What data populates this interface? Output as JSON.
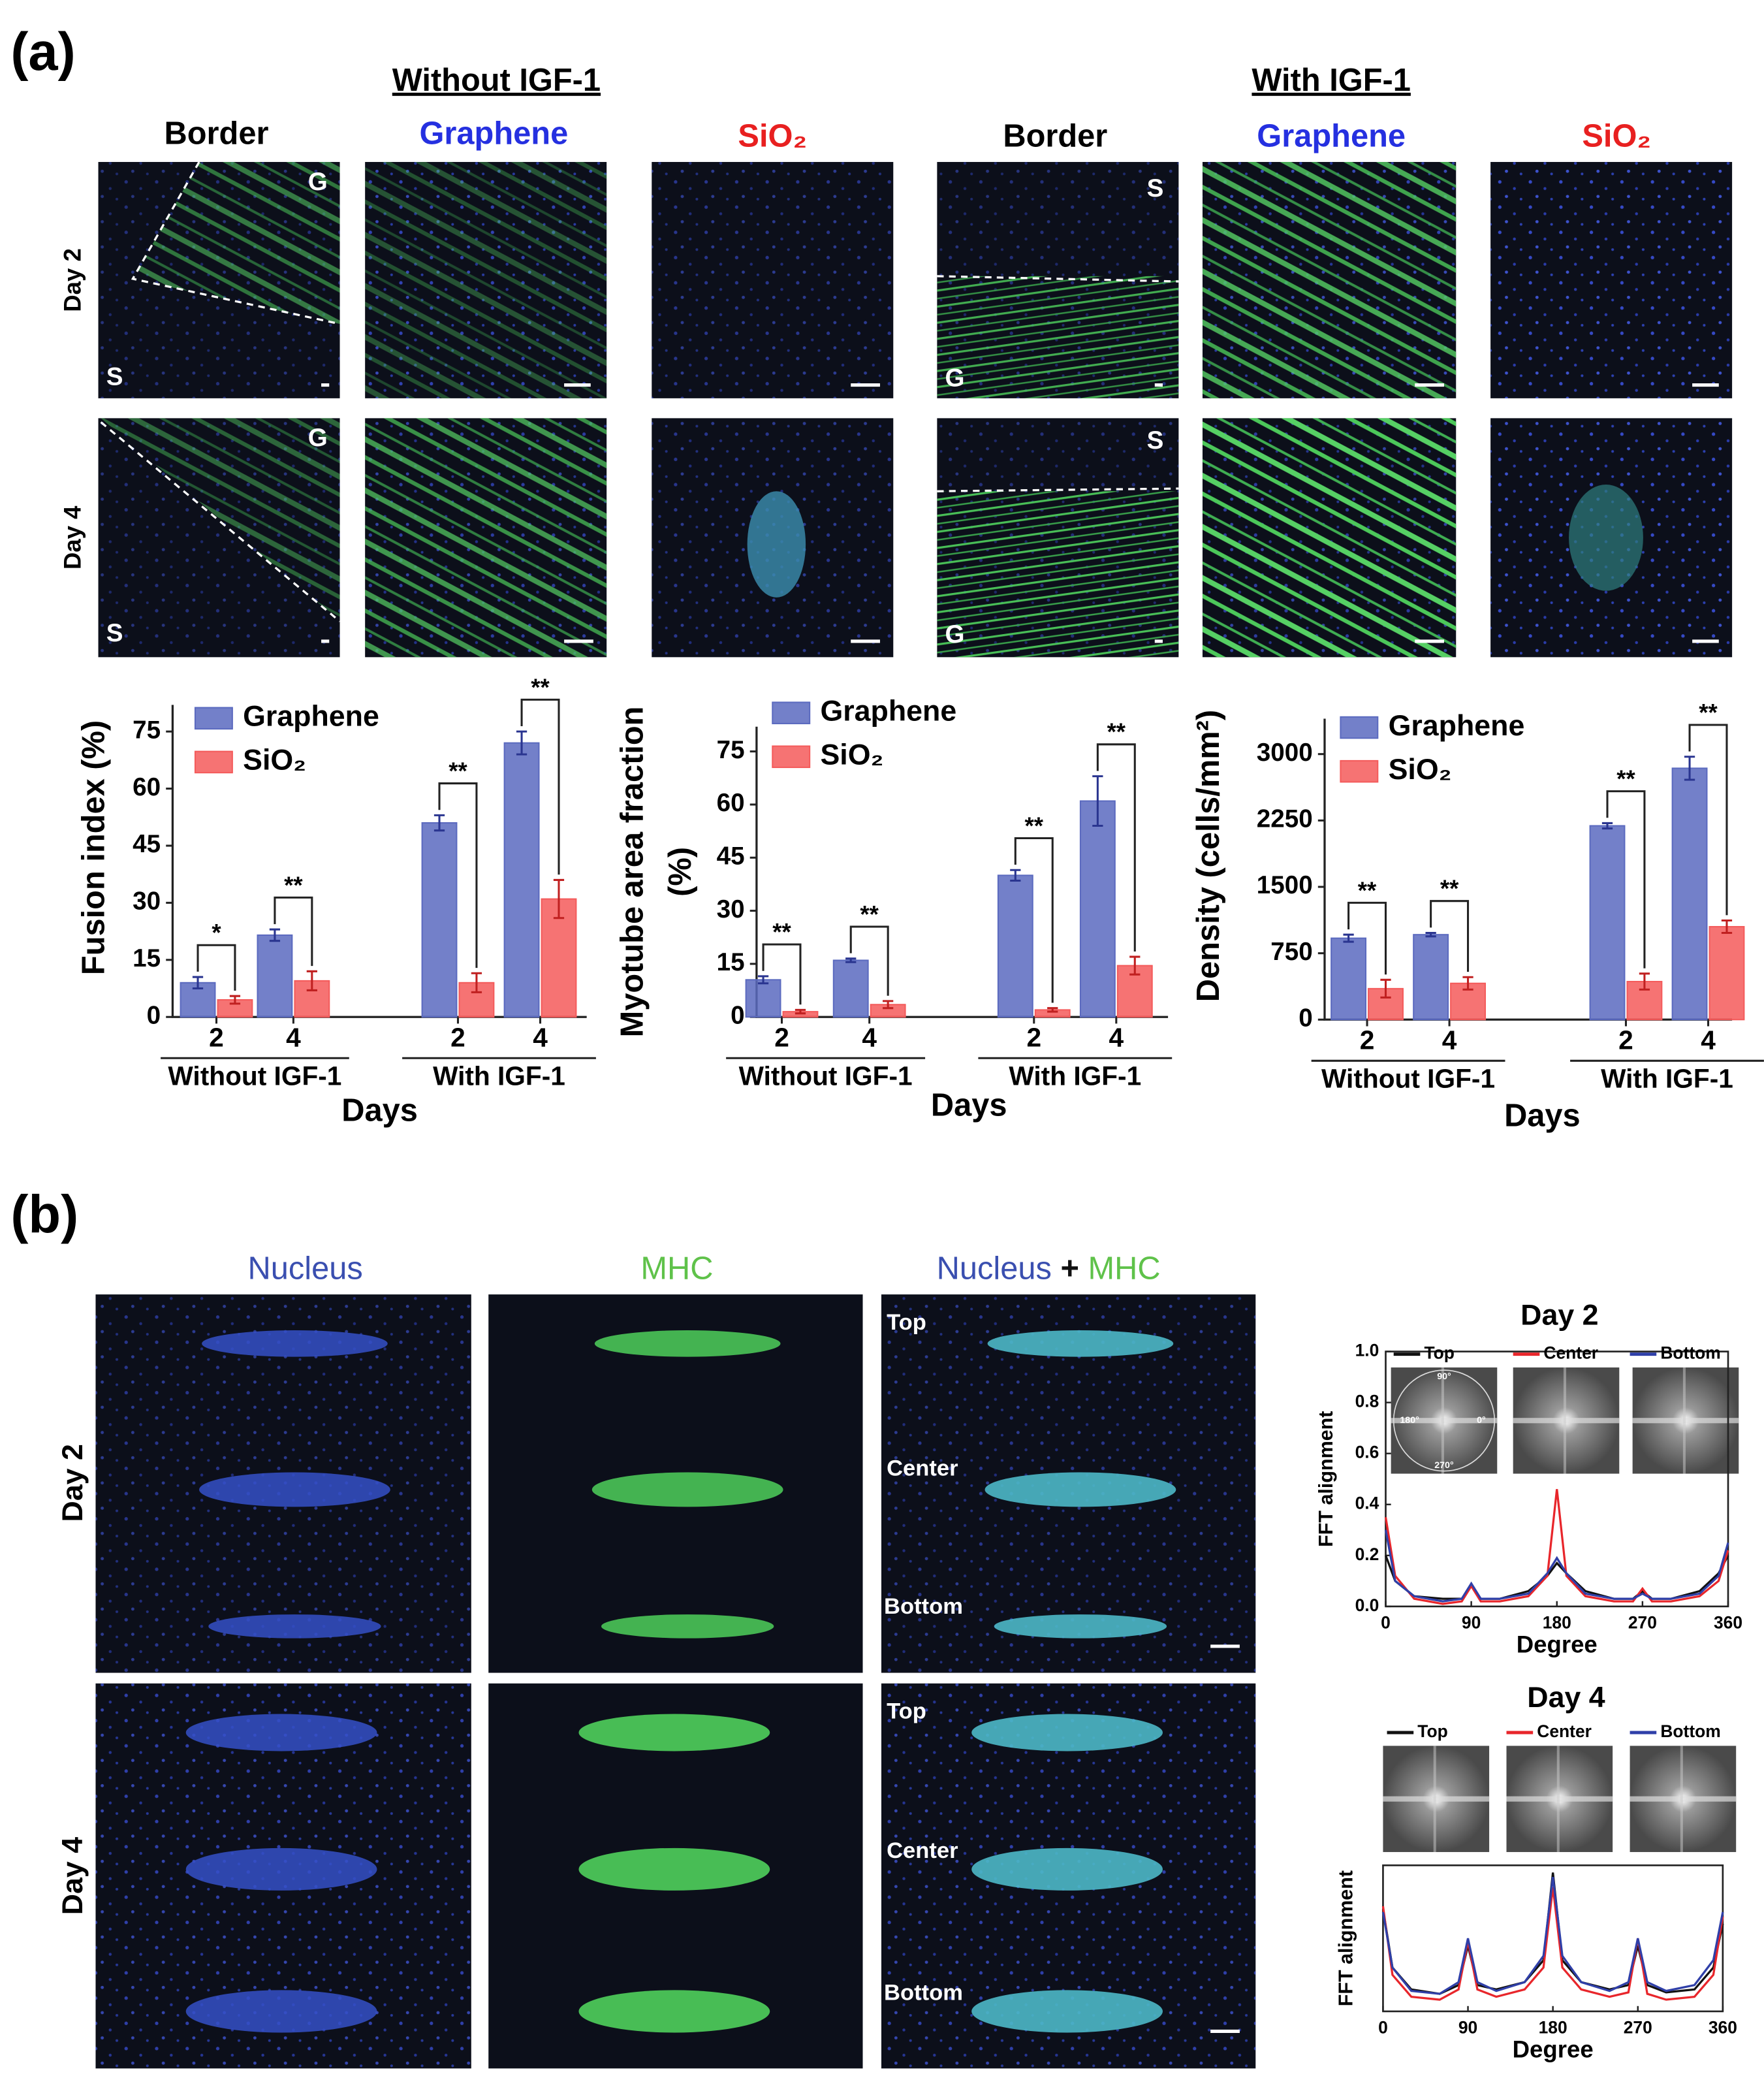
{
  "panel_a": {
    "label": "(a)",
    "groups": [
      "Without IGF-1",
      "With IGF-1"
    ],
    "columns": [
      "Border",
      "Graphene",
      "SiO₂",
      "Border",
      "Graphene",
      "SiO₂"
    ],
    "rows": [
      "Day 2",
      "Day 4"
    ],
    "border_labels": [
      [
        "G",
        "S"
      ],
      [
        "G",
        "S"
      ],
      [
        "S",
        "G"
      ],
      [
        "S",
        "G"
      ]
    ]
  },
  "panel_b": {
    "label": "(b)",
    "columns": [
      "Nucleus",
      "MHC"
    ],
    "merged_column": [
      "Nucleus",
      "+",
      "MHC"
    ],
    "rows": [
      "Day 2",
      "Day 4"
    ],
    "positions": [
      "Top",
      "Center",
      "Bottom"
    ],
    "fft_angles": [
      "90°",
      "180°",
      "0°",
      "270°"
    ]
  },
  "chart_data": [
    {
      "type": "bar",
      "y_label": "Fusion index (%)",
      "x_label": "Days",
      "categories": [
        "2",
        "4",
        "2",
        "4"
      ],
      "groups": [
        "Without IGF-1",
        "With IGF-1"
      ],
      "series": [
        {
          "name": "Graphene",
          "color": "#5b6abf",
          "values": [
            9,
            21.5,
            51,
            72
          ],
          "errors": [
            1.5,
            1.5,
            2,
            3
          ]
        },
        {
          "name": "SiO₂",
          "color": "#f45b5b",
          "values": [
            4.5,
            9.5,
            9,
            31
          ],
          "errors": [
            1,
            2.5,
            2.5,
            5
          ]
        }
      ],
      "significance": [
        "*",
        "**",
        "**",
        "**"
      ],
      "ylim": [
        0,
        82
      ],
      "yticks": [
        0,
        15,
        30,
        45,
        60,
        75
      ]
    },
    {
      "type": "bar",
      "y_label": [
        "Myotube area fraction",
        "(%)"
      ],
      "x_label": "Days",
      "categories": [
        "2",
        "4",
        "2",
        "4"
      ],
      "groups": [
        "Without IGF-1",
        "With IGF-1"
      ],
      "series": [
        {
          "name": "Graphene",
          "color": "#5b6abf",
          "values": [
            10.5,
            16,
            40,
            61
          ],
          "errors": [
            1,
            0.5,
            1.5,
            7
          ]
        },
        {
          "name": "SiO₂",
          "color": "#f45b5b",
          "values": [
            1.5,
            3.5,
            2,
            14.5
          ],
          "errors": [
            0.5,
            1,
            0.5,
            2.5
          ]
        }
      ],
      "significance": [
        "**",
        "**",
        "**",
        "**"
      ],
      "ylim": [
        0,
        82
      ],
      "yticks": [
        0,
        15,
        30,
        45,
        60,
        75
      ]
    },
    {
      "type": "bar",
      "y_label": "Density (cells/mm²)",
      "x_label": "Days",
      "categories": [
        "2",
        "4",
        "2",
        "4"
      ],
      "groups": [
        "Without IGF-1",
        "With IGF-1"
      ],
      "series": [
        {
          "name": "Graphene",
          "color": "#5b6abf",
          "values": [
            920,
            960,
            2190,
            2840
          ],
          "errors": [
            40,
            20,
            30,
            130
          ]
        },
        {
          "name": "SiO₂",
          "color": "#f45b5b",
          "values": [
            350,
            410,
            430,
            1050
          ],
          "errors": [
            100,
            70,
            90,
            70
          ]
        }
      ],
      "significance": [
        "**",
        "**",
        "**",
        "**"
      ],
      "ylim": [
        0,
        3400
      ],
      "yticks": [
        0,
        750,
        1500,
        2250,
        3000
      ]
    },
    {
      "type": "line",
      "title": "Day 2",
      "x_label": "Degree",
      "y_label": "FFT alignment",
      "x": [
        0,
        10,
        30,
        60,
        80,
        90,
        100,
        120,
        150,
        170,
        180,
        190,
        210,
        240,
        260,
        270,
        280,
        300,
        330,
        350,
        360
      ],
      "series": [
        {
          "name": "Top",
          "color": "#111111",
          "values": [
            0.2,
            0.1,
            0.04,
            0.03,
            0.03,
            0.08,
            0.03,
            0.03,
            0.06,
            0.12,
            0.17,
            0.13,
            0.06,
            0.03,
            0.03,
            0.06,
            0.03,
            0.03,
            0.06,
            0.13,
            0.2
          ]
        },
        {
          "name": "Center",
          "color": "#e8262b",
          "values": [
            0.35,
            0.12,
            0.03,
            0.01,
            0.02,
            0.08,
            0.02,
            0.02,
            0.04,
            0.12,
            0.46,
            0.12,
            0.04,
            0.02,
            0.02,
            0.07,
            0.02,
            0.02,
            0.04,
            0.1,
            0.22
          ]
        },
        {
          "name": "Bottom",
          "color": "#2f3fa8",
          "values": [
            0.3,
            0.1,
            0.04,
            0.02,
            0.03,
            0.09,
            0.03,
            0.03,
            0.05,
            0.13,
            0.19,
            0.13,
            0.05,
            0.03,
            0.03,
            0.05,
            0.03,
            0.03,
            0.05,
            0.12,
            0.25
          ]
        }
      ],
      "xlim": [
        0,
        360
      ],
      "xticks": [
        0,
        90,
        180,
        270,
        360
      ],
      "ylim": [
        0,
        1
      ],
      "yticks": [
        {
          "value": 0,
          "label": "0.0"
        },
        {
          "value": 0.2,
          "label": "0.2"
        },
        {
          "value": 0.4,
          "label": "0.4"
        },
        {
          "value": 0.6,
          "label": "0.6"
        },
        {
          "value": 0.8,
          "label": "0.8"
        },
        {
          "value": 1,
          "label": "1.0"
        }
      ]
    },
    {
      "type": "line",
      "title": "Day 4",
      "x_label": "Degree",
      "y_label": "FFT alignment",
      "x": [
        0,
        10,
        30,
        60,
        80,
        90,
        100,
        120,
        150,
        170,
        180,
        190,
        210,
        240,
        260,
        270,
        280,
        300,
        330,
        350,
        360
      ],
      "series": [
        {
          "name": "Top",
          "color": "#111111",
          "values": [
            0.7,
            0.3,
            0.15,
            0.12,
            0.18,
            0.45,
            0.18,
            0.15,
            0.2,
            0.35,
            0.95,
            0.35,
            0.2,
            0.15,
            0.18,
            0.45,
            0.18,
            0.13,
            0.15,
            0.3,
            0.6
          ]
        },
        {
          "name": "Center",
          "color": "#e8262b",
          "values": [
            0.72,
            0.25,
            0.1,
            0.08,
            0.15,
            0.48,
            0.15,
            0.1,
            0.15,
            0.3,
            0.85,
            0.3,
            0.15,
            0.1,
            0.13,
            0.5,
            0.12,
            0.08,
            0.1,
            0.25,
            0.65
          ]
        },
        {
          "name": "Bottom",
          "color": "#2f3fa8",
          "values": [
            0.68,
            0.3,
            0.14,
            0.12,
            0.2,
            0.5,
            0.2,
            0.14,
            0.2,
            0.38,
            0.92,
            0.38,
            0.2,
            0.14,
            0.2,
            0.5,
            0.2,
            0.14,
            0.18,
            0.35,
            0.68
          ]
        }
      ],
      "xlim": [
        0,
        360
      ],
      "xticks": [
        0,
        90,
        180,
        270,
        360
      ],
      "ylim": [
        0,
        1
      ]
    }
  ]
}
